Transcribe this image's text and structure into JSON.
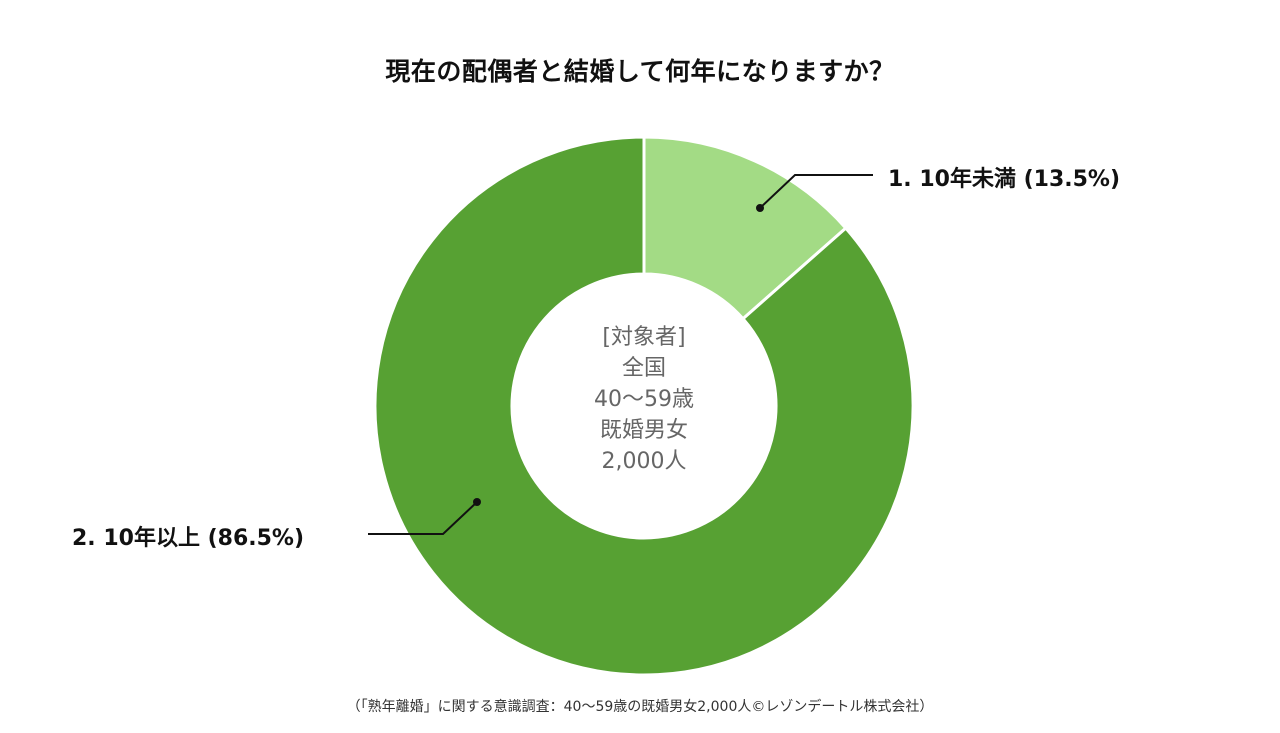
{
  "chart_data": {
    "type": "pie",
    "variant": "donut",
    "title": "現在の配偶者と結婚して何年になりますか？",
    "categories": [
      "1. 10年未満",
      "2. 10年以上"
    ],
    "values": [
      13.5,
      86.5
    ],
    "unit": "%",
    "colors": [
      "#a3db85",
      "#57a133"
    ],
    "labels": [
      "1. 10年未満 (13.5%)",
      "2. 10年以上 (86.5%)"
    ],
    "start_angle_deg": 0,
    "direction": "clockwise",
    "center_text": [
      "[対象者]",
      "全国",
      "40～59歳",
      "既婚男女",
      "2,000人"
    ],
    "source": "（「熟年離婚」に関する意識調査：40～59歳の既婚男女2,000人©レゾンデートル株式会社）"
  },
  "header": {
    "title": "現在の配偶者と結婚して何年になりますか？"
  },
  "legend": {
    "slice1": "1. 10年未満 (13.5%)",
    "slice2": "2. 10年以上 (86.5%)"
  },
  "center": {
    "line1": "[対象者]",
    "line2": "全国",
    "line3": "40～59歳",
    "line4": "既婚男女",
    "line5": "2,000人"
  },
  "footer": {
    "source": "（「熟年離婚」に関する意識調査：40～59歳の既婚男女2,000人©レゾンデートル株式会社）"
  }
}
